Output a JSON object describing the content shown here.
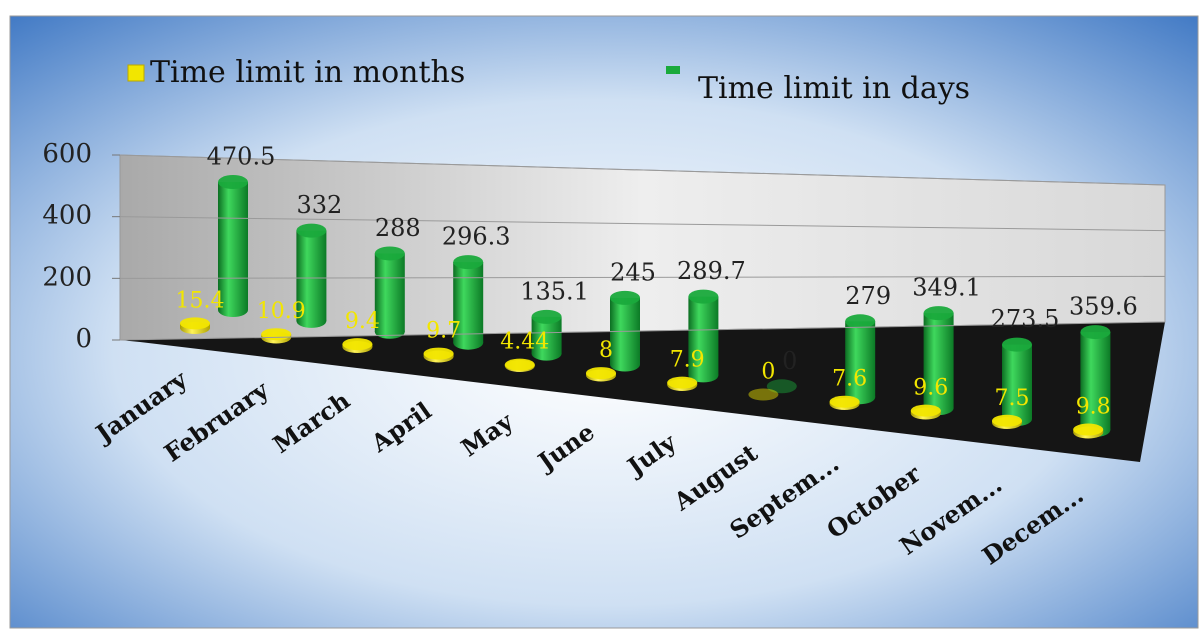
{
  "chart_data": {
    "type": "bar3d",
    "categories": [
      "January",
      "February",
      "March",
      "April",
      "May",
      "June",
      "July",
      "August",
      "Septem...",
      "October",
      "Novem...",
      "Decem..."
    ],
    "series": [
      {
        "name": "Time limit in months",
        "color": "#f2e600",
        "values": [
          15.4,
          10.9,
          9.4,
          9.7,
          4.44,
          8,
          7.9,
          0,
          7.6,
          9.6,
          7.5,
          9.8
        ]
      },
      {
        "name": "Time limit in days",
        "color": "#1aaa3c",
        "values": [
          470.5,
          332,
          288,
          296.3,
          135.1,
          245,
          289.7,
          0,
          279,
          349.1,
          273.5,
          359.6
        ]
      }
    ],
    "ylim": [
      0,
      600
    ],
    "yticks": [
      0,
      200,
      400,
      600
    ],
    "grid": true,
    "legend": "top"
  }
}
